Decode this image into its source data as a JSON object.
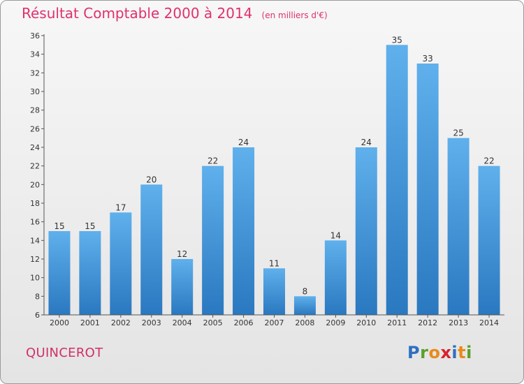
{
  "header": {
    "title": "Résultat Comptable 2000 à 2014",
    "subtitle": "(en milliers d'€)"
  },
  "footer": {
    "place_name": "QUINCEROT",
    "logo_letters": [
      {
        "char": "P",
        "color": "#2f6fc1"
      },
      {
        "char": "r",
        "color": "#5aa02c"
      },
      {
        "char": "o",
        "color": "#e88a1a"
      },
      {
        "char": "x",
        "color": "#d8222a"
      },
      {
        "char": "i",
        "color": "#2f6fc1"
      },
      {
        "char": "t",
        "color": "#e88a1a"
      },
      {
        "char": "i",
        "color": "#5aa02c"
      }
    ]
  },
  "chart_data": {
    "type": "bar",
    "categories": [
      "2000",
      "2001",
      "2002",
      "2003",
      "2004",
      "2005",
      "2006",
      "2007",
      "2008",
      "2009",
      "2010",
      "2011",
      "2012",
      "2013",
      "2014"
    ],
    "values": [
      15,
      15,
      17,
      20,
      12,
      22,
      24,
      11,
      8,
      14,
      24,
      35,
      33,
      25,
      22
    ],
    "ylim": [
      6,
      36
    ],
    "yticks": [
      6,
      8,
      10,
      12,
      14,
      16,
      18,
      20,
      22,
      24,
      26,
      28,
      30,
      32,
      34,
      36
    ],
    "grid": false,
    "bar_color_top": "#5fb0ec",
    "bar_color_bottom": "#2a78c0"
  }
}
